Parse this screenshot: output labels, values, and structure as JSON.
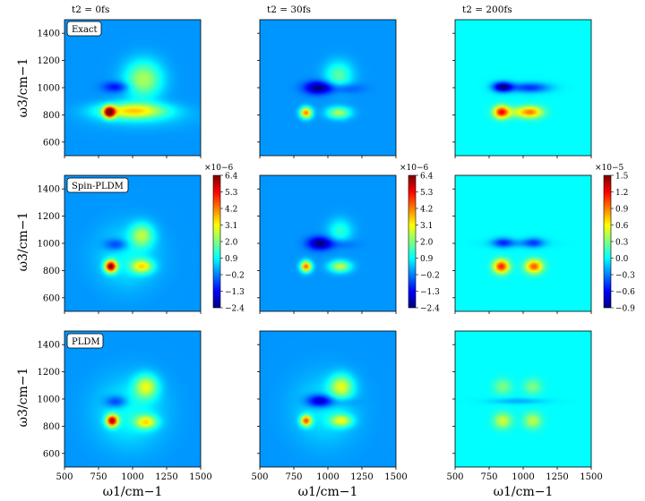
{
  "chart_data": {
    "type": "heatmap",
    "title": "",
    "xlabel": "ω1/cm−1",
    "ylabel": "ω3/cm−1",
    "xlim": [
      500,
      1500
    ],
    "ylim": [
      500,
      1500
    ],
    "x_ticks": [
      "500",
      "750",
      "1000",
      "1250",
      "1500"
    ],
    "y_ticks": [
      "600",
      "800",
      "1000",
      "1200",
      "1400"
    ],
    "columns": [
      {
        "label": "t2 = 0fs",
        "t2_fs": 0
      },
      {
        "label": "t2 = 30fs",
        "t2_fs": 30
      },
      {
        "label": "t2 = 200fs",
        "t2_fs": 200
      }
    ],
    "rows": [
      {
        "method": "Exact"
      },
      {
        "method": "Spin-PLDM"
      },
      {
        "method": "PLDM"
      }
    ],
    "colorbars": [
      {
        "multiplier": "×10−6",
        "min": -2.4,
        "max": 6.4,
        "ticks": [
          "6.4",
          "5.3",
          "4.2",
          "3.1",
          "2.0",
          "0.9",
          "−0.2",
          "−1.3",
          "−2.4"
        ]
      },
      {
        "multiplier": "×10−6",
        "min": -2.4,
        "max": 6.4,
        "ticks": [
          "6.4",
          "5.3",
          "4.2",
          "3.1",
          "2.0",
          "0.9",
          "−0.2",
          "−1.3",
          "−2.4"
        ]
      },
      {
        "multiplier": "×10−5",
        "min": -0.9,
        "max": 1.5,
        "ticks": [
          "1.5",
          "1.2",
          "0.9",
          "0.6",
          "0.3",
          "0.0",
          "−0.3",
          "−0.6",
          "−0.9"
        ]
      }
    ],
    "features": [
      [
        {
          "background": 0.0,
          "peaks": [
            {
              "x": 830,
              "y": 820,
              "amp": 6.4,
              "sx": 28,
              "sy": 28
            },
            {
              "x": 1000,
              "y": 830,
              "amp": 3.2,
              "sx": 170,
              "sy": 40
            },
            {
              "x": 1080,
              "y": 1060,
              "amp": 2.4,
              "sx": 95,
              "sy": 95
            },
            {
              "x": 880,
              "y": 1005,
              "amp": -1.4,
              "sx": 65,
              "sy": 26
            },
            {
              "x": 1060,
              "y": 780,
              "amp": 0.5,
              "sx": 250,
              "sy": 60
            }
          ]
        },
        {
          "background": 0.0,
          "peaks": [
            {
              "x": 840,
              "y": 815,
              "amp": 4.3,
              "sx": 30,
              "sy": 28
            },
            {
              "x": 1080,
              "y": 815,
              "amp": 2.4,
              "sx": 60,
              "sy": 30
            },
            {
              "x": 1080,
              "y": 1090,
              "amp": 1.7,
              "sx": 70,
              "sy": 70
            },
            {
              "x": 930,
              "y": 1000,
              "amp": -2.4,
              "sx": 70,
              "sy": 32
            },
            {
              "x": 1120,
              "y": 995,
              "amp": -0.8,
              "sx": 90,
              "sy": 26
            }
          ]
        },
        {
          "background": 0.0,
          "peaks": [
            {
              "x": 840,
              "y": 820,
              "amp": 1.1,
              "sx": 38,
              "sy": 32
            },
            {
              "x": 1060,
              "y": 820,
              "amp": 0.75,
              "sx": 60,
              "sy": 30
            },
            {
              "x": 950,
              "y": 820,
              "amp": 0.35,
              "sx": 90,
              "sy": 28
            },
            {
              "x": 850,
              "y": 1005,
              "amp": -0.9,
              "sx": 50,
              "sy": 25
            },
            {
              "x": 1050,
              "y": 1000,
              "amp": -0.5,
              "sx": 100,
              "sy": 25
            }
          ]
        }
      ],
      [
        {
          "background": 0.0,
          "peaks": [
            {
              "x": 840,
              "y": 830,
              "amp": 6.0,
              "sx": 30,
              "sy": 30
            },
            {
              "x": 1070,
              "y": 830,
              "amp": 2.9,
              "sx": 55,
              "sy": 35
            },
            {
              "x": 1070,
              "y": 1060,
              "amp": 2.2,
              "sx": 60,
              "sy": 60
            },
            {
              "x": 880,
              "y": 990,
              "amp": -1.3,
              "sx": 60,
              "sy": 30
            },
            {
              "x": 960,
              "y": 900,
              "amp": 0.9,
              "sx": 150,
              "sy": 150
            }
          ]
        },
        {
          "background": 0.0,
          "peaks": [
            {
              "x": 840,
              "y": 830,
              "amp": 4.5,
              "sx": 28,
              "sy": 28
            },
            {
              "x": 1090,
              "y": 830,
              "amp": 2.6,
              "sx": 55,
              "sy": 30
            },
            {
              "x": 1090,
              "y": 1090,
              "amp": 1.3,
              "sx": 60,
              "sy": 60
            },
            {
              "x": 940,
              "y": 1000,
              "amp": -2.4,
              "sx": 60,
              "sy": 32
            },
            {
              "x": 1090,
              "y": 995,
              "amp": -0.6,
              "sx": 80,
              "sy": 25
            }
          ]
        },
        {
          "background": 0.0,
          "peaks": [
            {
              "x": 840,
              "y": 830,
              "amp": 1.15,
              "sx": 40,
              "sy": 35
            },
            {
              "x": 1080,
              "y": 830,
              "amp": 1.0,
              "sx": 45,
              "sy": 35
            },
            {
              "x": 850,
              "y": 1005,
              "amp": -0.4,
              "sx": 50,
              "sy": 25
            },
            {
              "x": 1080,
              "y": 1005,
              "amp": -0.35,
              "sx": 50,
              "sy": 25
            },
            {
              "x": 960,
              "y": 1000,
              "amp": -0.2,
              "sx": 140,
              "sy": 20
            }
          ]
        }
      ],
      [
        {
          "background": 0.0,
          "peaks": [
            {
              "x": 850,
              "y": 840,
              "amp": 5.6,
              "sx": 30,
              "sy": 30
            },
            {
              "x": 1100,
              "y": 830,
              "amp": 2.8,
              "sx": 55,
              "sy": 35
            },
            {
              "x": 1100,
              "y": 1090,
              "amp": 2.6,
              "sx": 60,
              "sy": 60
            },
            {
              "x": 880,
              "y": 980,
              "amp": -1.4,
              "sx": 55,
              "sy": 30
            },
            {
              "x": 980,
              "y": 900,
              "amp": 1.0,
              "sx": 170,
              "sy": 170
            }
          ]
        },
        {
          "background": 0.0,
          "peaks": [
            {
              "x": 840,
              "y": 840,
              "amp": 4.3,
              "sx": 28,
              "sy": 28
            },
            {
              "x": 1100,
              "y": 840,
              "amp": 2.6,
              "sx": 55,
              "sy": 32
            },
            {
              "x": 1100,
              "y": 1090,
              "amp": 2.6,
              "sx": 60,
              "sy": 60
            },
            {
              "x": 940,
              "y": 985,
              "amp": -2.4,
              "sx": 65,
              "sy": 32
            },
            {
              "x": 1100,
              "y": 980,
              "amp": -0.6,
              "sx": 80,
              "sy": 25
            },
            {
              "x": 980,
              "y": 920,
              "amp": 0.8,
              "sx": 160,
              "sy": 170
            }
          ]
        },
        {
          "background": 0.0,
          "peaks": [
            {
              "x": 850,
              "y": 840,
              "amp": 0.5,
              "sx": 45,
              "sy": 40
            },
            {
              "x": 1070,
              "y": 840,
              "amp": 0.45,
              "sx": 45,
              "sy": 40
            },
            {
              "x": 850,
              "y": 1090,
              "amp": 0.3,
              "sx": 45,
              "sy": 40
            },
            {
              "x": 1070,
              "y": 1090,
              "amp": 0.3,
              "sx": 45,
              "sy": 40
            },
            {
              "x": 960,
              "y": 985,
              "amp": -0.2,
              "sx": 140,
              "sy": 15
            }
          ]
        }
      ]
    ]
  },
  "colors": {
    "jet": [
      "#00007f",
      "#0000ff",
      "#007fff",
      "#00ffff",
      "#7fff7f",
      "#ffff00",
      "#ff7f00",
      "#ff0000",
      "#7f0000"
    ]
  }
}
